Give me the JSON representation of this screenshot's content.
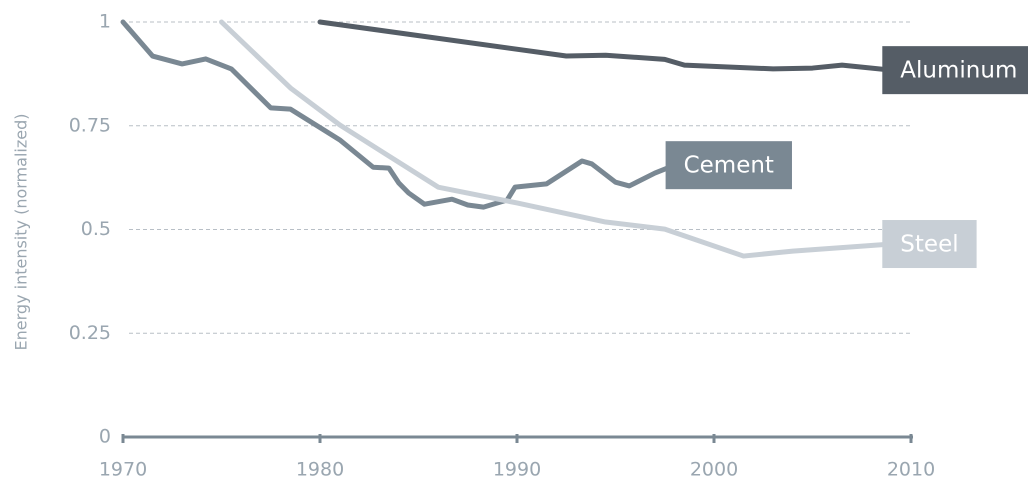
{
  "chart_data": {
    "type": "line",
    "ylabel": "Energy intensity (normalized)",
    "xlim": [
      1970,
      2010
    ],
    "xticks": [
      1970,
      1980,
      1990,
      2000,
      2010
    ],
    "ylim": [
      0,
      1
    ],
    "yticks": [
      0,
      0.25,
      0.5,
      0.75,
      1
    ],
    "grid": true,
    "series": [
      {
        "name": "Aluminum",
        "color": "#555d66",
        "x": [
          1980,
          1992.5,
          1994.5,
          1997.5,
          1998.5,
          2003,
          2005,
          2006.5,
          2009
        ],
        "values": [
          1.0,
          0.918,
          0.92,
          0.91,
          0.896,
          0.887,
          0.889,
          0.896,
          0.884
        ]
      },
      {
        "name": "Cement",
        "color": "#7a8893",
        "x": [
          1970,
          1971.5,
          1973,
          1974.2,
          1975.5,
          1977.5,
          1978.5,
          1981,
          1982.7,
          1983.5,
          1984,
          1984.5,
          1985.3,
          1986.7,
          1987.5,
          1988.3,
          1989.5,
          1989.9,
          1991.5,
          1993.3,
          1993.8,
          1995,
          1995.7,
          1997,
          1998
        ],
        "values": [
          1.0,
          0.918,
          0.899,
          0.911,
          0.887,
          0.793,
          0.79,
          0.716,
          0.65,
          0.648,
          0.612,
          0.588,
          0.561,
          0.573,
          0.559,
          0.554,
          0.571,
          0.602,
          0.61,
          0.665,
          0.658,
          0.614,
          0.605,
          0.636,
          0.655
        ]
      },
      {
        "name": "Steel",
        "color": "#c8cfd6",
        "x": [
          1975,
          1978.5,
          1981,
          1986,
          1990,
          1994.5,
          1997.5,
          2001.5,
          2004,
          2009
        ],
        "values": [
          1.0,
          0.841,
          0.752,
          0.602,
          0.564,
          0.518,
          0.501,
          0.436,
          0.448,
          0.465
        ]
      }
    ]
  }
}
